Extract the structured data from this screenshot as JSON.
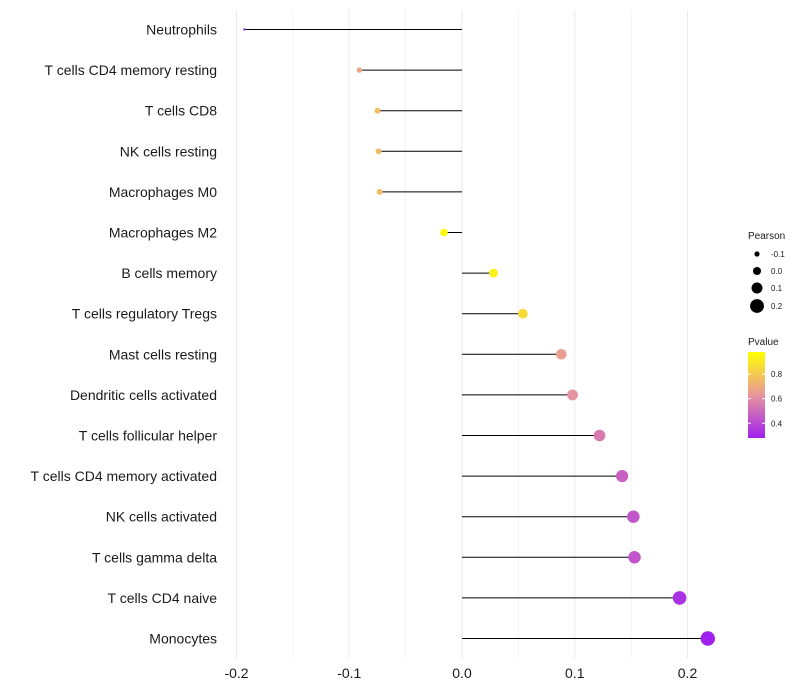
{
  "chart_data": {
    "type": "lollipop",
    "categories": [
      "Neutrophils",
      "T cells CD4 memory resting",
      "T cells CD8",
      "NK cells resting",
      "Macrophages M0",
      "Macrophages M2",
      "B cells memory",
      "T cells regulatory  Tregs ",
      "Mast cells resting",
      "Dendritic cells activated",
      "T cells follicular helper",
      "T cells CD4 memory activated",
      "NK cells activated",
      "T cells gamma delta",
      "T cells CD4 naive",
      "Monocytes"
    ],
    "values": [
      -0.193,
      -0.091,
      -0.075,
      -0.074,
      -0.073,
      -0.016,
      0.028,
      0.054,
      0.088,
      0.098,
      0.122,
      0.142,
      0.152,
      0.153,
      0.193,
      0.218
    ],
    "pvalues": [
      0.3,
      0.68,
      0.76,
      0.76,
      0.76,
      0.97,
      0.93,
      0.86,
      0.66,
      0.62,
      0.55,
      0.47,
      0.44,
      0.44,
      0.33,
      0.28
    ],
    "xlim": [
      -0.2,
      0.2
    ],
    "xticks": [
      -0.2,
      -0.1,
      0.0,
      0.1,
      0.2
    ],
    "xtick_labels": [
      "-0.2",
      "-0.1",
      "0.0",
      "0.1",
      "0.2"
    ],
    "xlabel": "",
    "ylabel": "",
    "grid": "vertical",
    "size_legend": {
      "title": "Pearson",
      "values": [
        -0.1,
        0.0,
        0.1,
        0.2
      ],
      "labels": [
        "-0.1",
        "0.0",
        "0.1",
        "0.2"
      ]
    },
    "color_legend": {
      "title": "Pvalue",
      "ticks": [
        0.8,
        0.6,
        0.4
      ],
      "tick_labels": [
        "0.8",
        "0.6",
        "0.4"
      ],
      "range": [
        0.28,
        0.98
      ],
      "colors": {
        "low": "#A020F0",
        "mid": "#E7969C",
        "high": "#FFFF00"
      }
    },
    "segment_color": "#000000",
    "grid_color": "#ebebeb"
  }
}
